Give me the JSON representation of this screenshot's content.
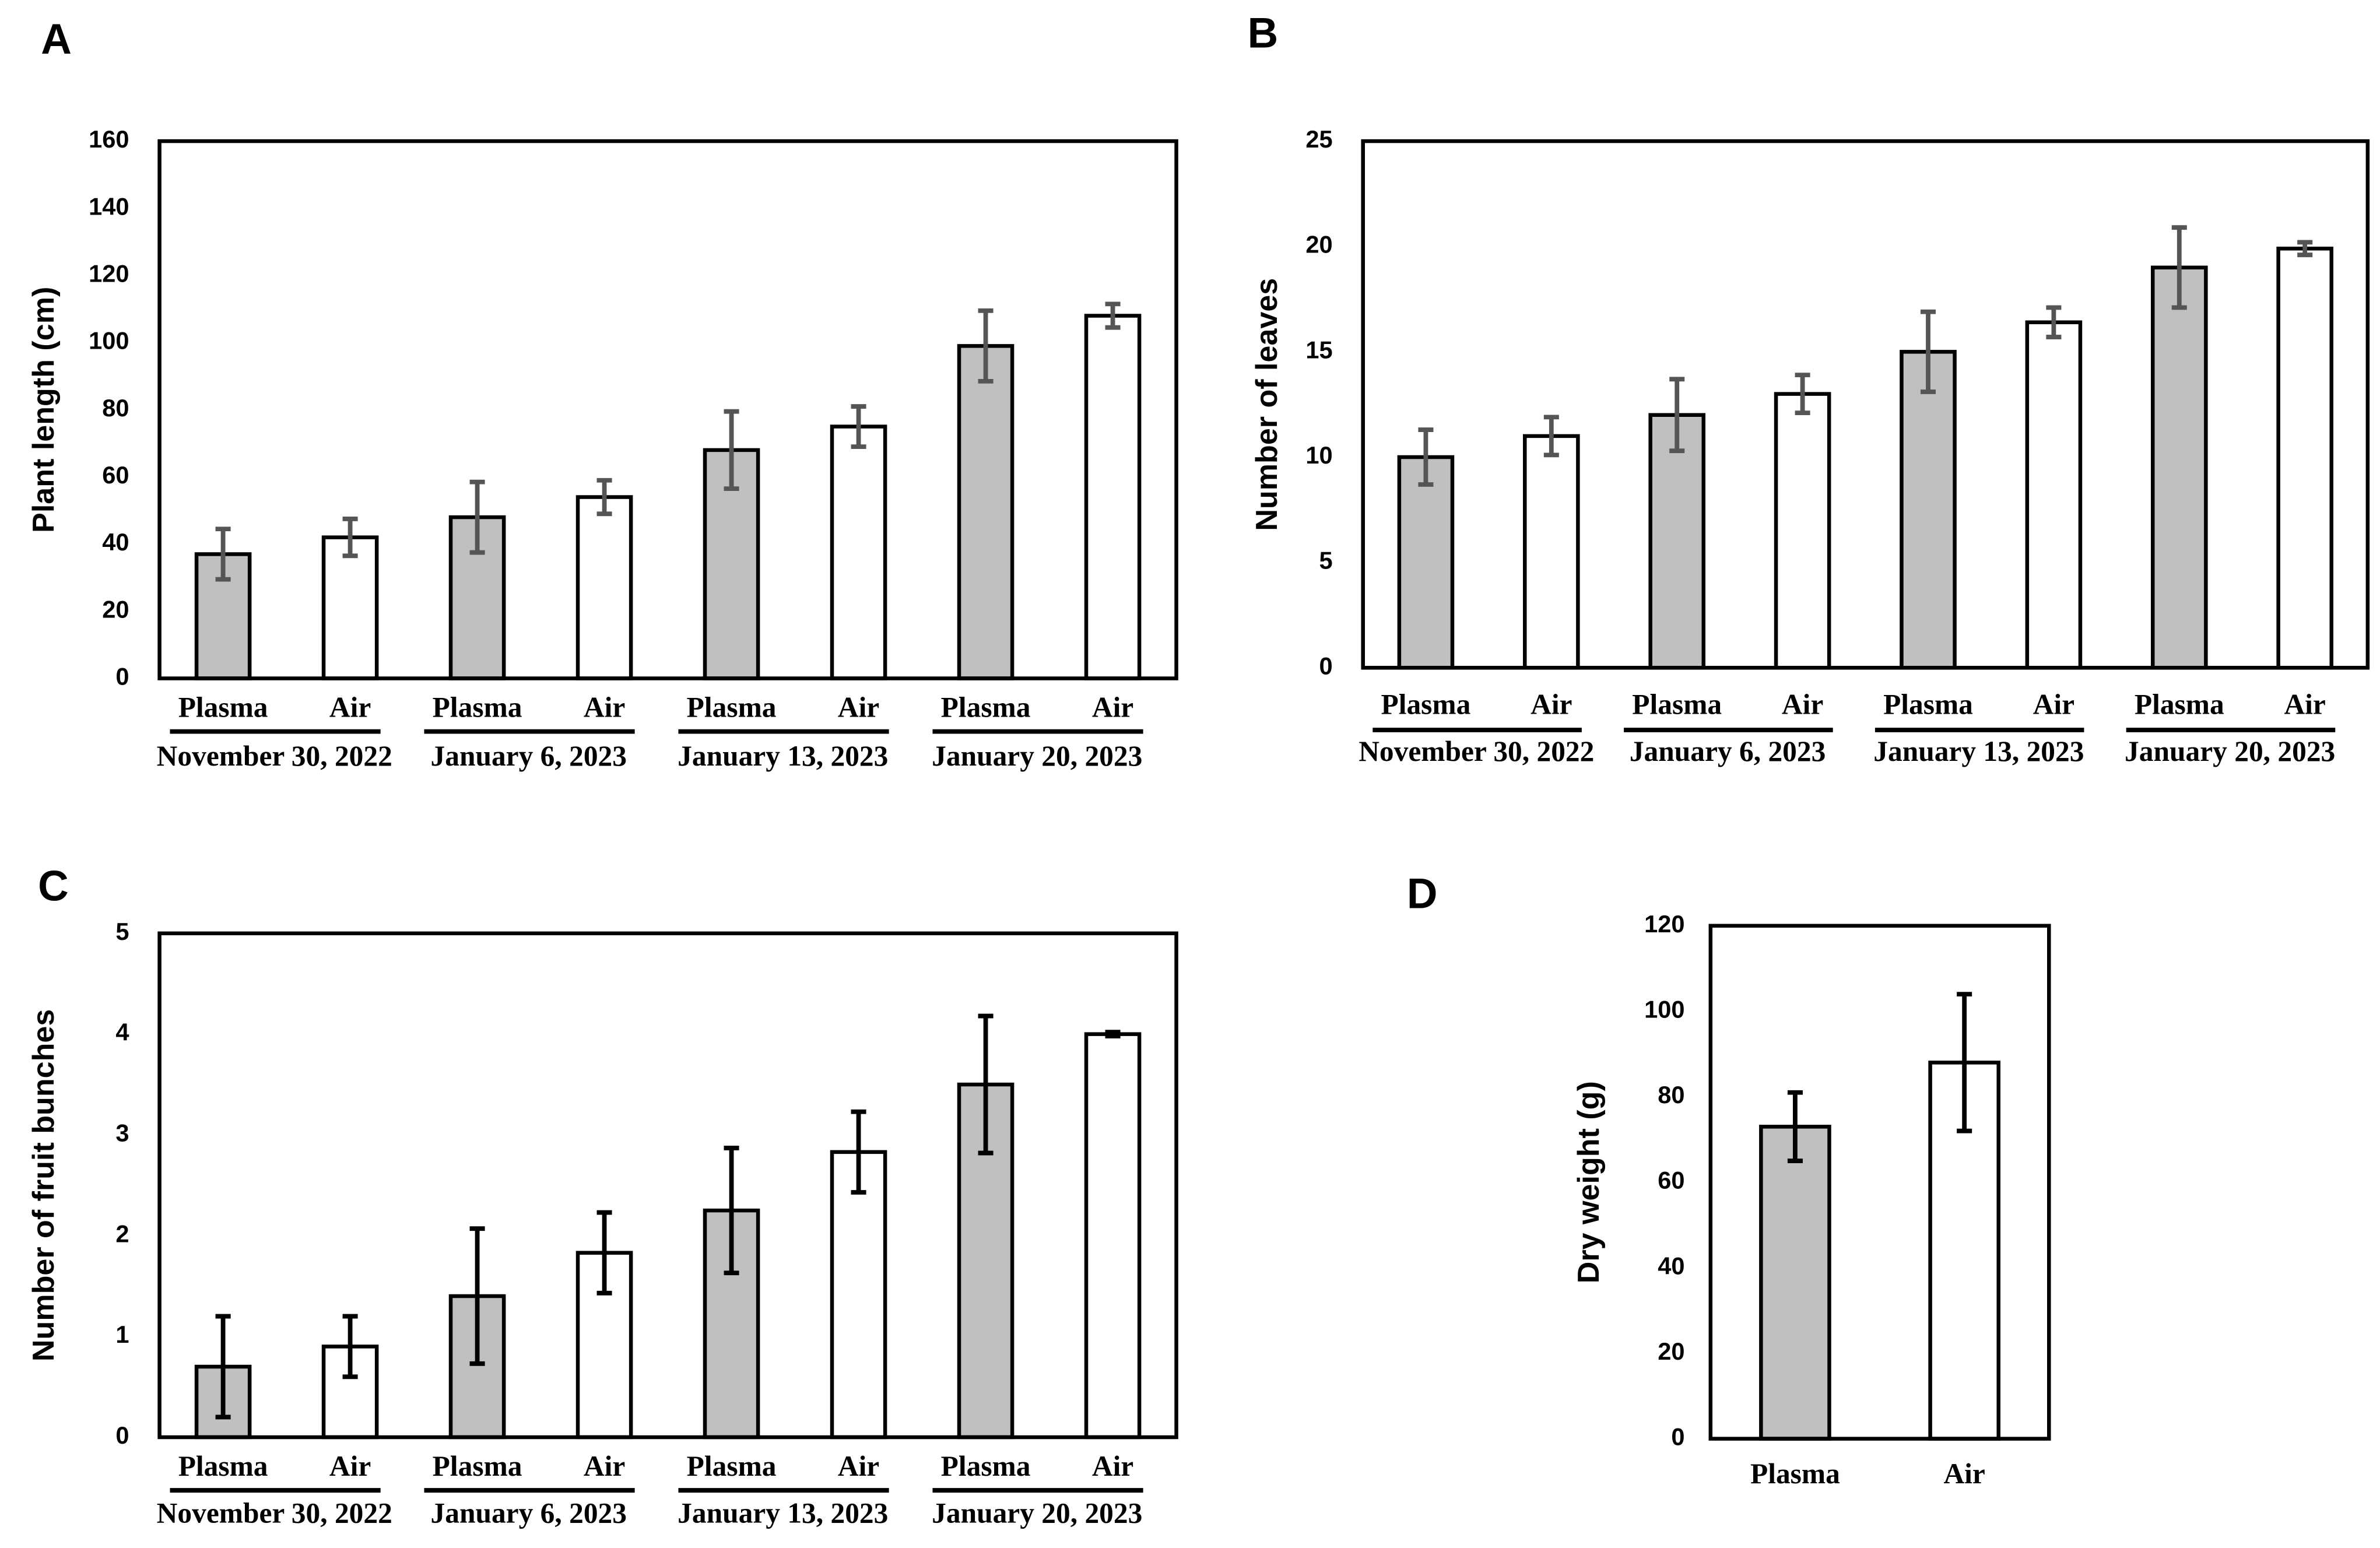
{
  "chart_data": [
    {
      "type": "bar",
      "panel_label": "A",
      "ylabel": "Plant length (cm)",
      "categories": [
        "Plasma",
        "Air",
        "Plasma",
        "Air",
        "Plasma",
        "Air",
        "Plasma",
        "Air"
      ],
      "group_labels": [
        "November 30, 2022",
        "January 6, 2023",
        "January 13, 2023",
        "January 20, 2023"
      ],
      "values": [
        37,
        42,
        48,
        54,
        68,
        75,
        99,
        108
      ],
      "errors": [
        7.5,
        5.5,
        10.5,
        5,
        11.5,
        6,
        10.5,
        3.5
      ],
      "colors": [
        "#c0c0c0",
        "#ffffff",
        "#c0c0c0",
        "#ffffff",
        "#c0c0c0",
        "#ffffff",
        "#c0c0c0",
        "#ffffff"
      ],
      "error_color": "#555555",
      "ylim": [
        0,
        160
      ],
      "yticks": [
        0,
        20,
        40,
        60,
        80,
        100,
        120,
        140,
        160
      ]
    },
    {
      "type": "bar",
      "panel_label": "B",
      "ylabel": "Number of leaves",
      "categories": [
        "Plasma",
        "Air",
        "Plasma",
        "Air",
        "Plasma",
        "Air",
        "Plasma",
        "Air"
      ],
      "group_labels": [
        "November 30, 2022",
        "January 6, 2023",
        "January 13, 2023",
        "January 20, 2023"
      ],
      "values": [
        10,
        11,
        12,
        13,
        15,
        16.4,
        19,
        19.9
      ],
      "errors": [
        1.3,
        0.9,
        1.7,
        0.9,
        1.9,
        0.7,
        1.9,
        0.3
      ],
      "colors": [
        "#c0c0c0",
        "#ffffff",
        "#c0c0c0",
        "#ffffff",
        "#c0c0c0",
        "#ffffff",
        "#c0c0c0",
        "#ffffff"
      ],
      "error_color": "#555555",
      "ylim": [
        0,
        25
      ],
      "yticks": [
        0,
        5,
        10,
        15,
        20,
        25
      ]
    },
    {
      "type": "bar",
      "panel_label": "C",
      "ylabel": "Number of fruit bunches",
      "categories": [
        "Plasma",
        "Air",
        "Plasma",
        "Air",
        "Plasma",
        "Air",
        "Plasma",
        "Air"
      ],
      "group_labels": [
        "November 30, 2022",
        "January 6, 2023",
        "January 13, 2023",
        "January 20, 2023"
      ],
      "values": [
        0.7,
        0.9,
        1.4,
        1.83,
        2.25,
        2.83,
        3.5,
        4.0
      ],
      "errors": [
        0.5,
        0.3,
        0.67,
        0.4,
        0.62,
        0.4,
        0.68,
        0.02
      ],
      "colors": [
        "#c0c0c0",
        "#ffffff",
        "#c0c0c0",
        "#ffffff",
        "#c0c0c0",
        "#ffffff",
        "#c0c0c0",
        "#ffffff"
      ],
      "error_color": "#000000",
      "ylim": [
        0,
        5
      ],
      "yticks": [
        0,
        1,
        2,
        3,
        4,
        5
      ]
    },
    {
      "type": "bar",
      "panel_label": "D",
      "ylabel": "Dry weight (g)",
      "categories": [
        "Plasma",
        "Air"
      ],
      "values": [
        73,
        88
      ],
      "errors": [
        8,
        16
      ],
      "colors": [
        "#c0c0c0",
        "#ffffff"
      ],
      "error_color": "#000000",
      "ylim": [
        0,
        120
      ],
      "yticks": [
        0,
        20,
        40,
        60,
        80,
        100,
        120
      ]
    }
  ]
}
